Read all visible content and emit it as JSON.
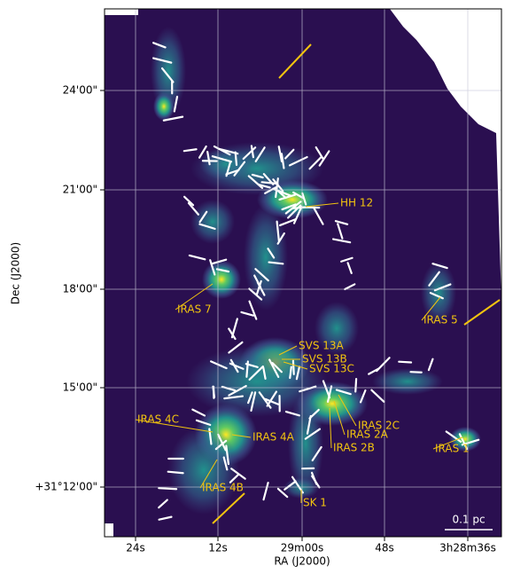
{
  "axes": {
    "x_label": "RA (J2000)",
    "y_label": "Dec (J2000)",
    "x_ticks": [
      "24s",
      "12s",
      "29m00s",
      "48s",
      "3h28m36s"
    ],
    "y_ticks": [
      "24'00\"",
      "21'00\"",
      "18'00\"",
      "15'00\"",
      "+31°12'00\""
    ]
  },
  "sources": [
    "HH 12",
    "IRAS 7",
    "IRAS 5",
    "SVS 13A",
    "SVS 13B",
    "SVS 13C",
    "IRAS 4C",
    "IRAS 2C",
    "IRAS 2A",
    "IRAS 2B",
    "IRAS 4A",
    "IRAS 1",
    "IRAS 4B",
    "SK 1"
  ],
  "scale_bar": "0.1 pc"
}
